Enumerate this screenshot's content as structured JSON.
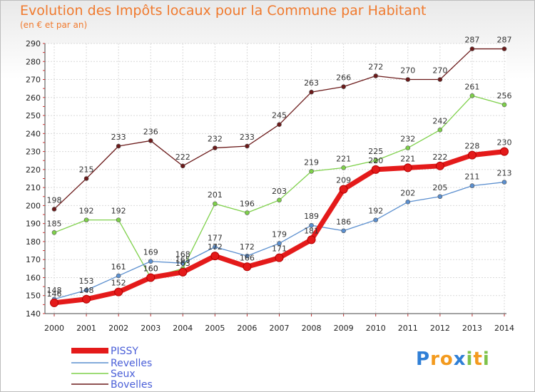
{
  "header": {
    "title": "Evolution des Impôts locaux pour la Commune par Habitant",
    "subtitle": "(en € et par an)"
  },
  "chart_data": {
    "type": "line",
    "title": "Evolution des Impôts locaux pour la Commune par Habitant",
    "subtitle": "(en € et par an)",
    "x": [
      "2000",
      "2001",
      "2002",
      "2003",
      "2004",
      "2005",
      "2006",
      "2007",
      "2008",
      "2009",
      "2010",
      "2011",
      "2012",
      "2013",
      "2014"
    ],
    "ylim": [
      140,
      290
    ],
    "yticks": [
      140,
      150,
      160,
      170,
      180,
      190,
      200,
      210,
      220,
      230,
      240,
      250,
      260,
      270,
      280,
      290
    ],
    "grid": true,
    "legend_position": "bottom-left",
    "series": [
      {
        "name": "Bovelles",
        "color": "#6b1a1a",
        "values": [
          198,
          215,
          233,
          236,
          222,
          232,
          233,
          245,
          263,
          266,
          272,
          270,
          270,
          287,
          287
        ]
      },
      {
        "name": "Seux",
        "color": "#7ed04a",
        "values": [
          185,
          192,
          192,
          160,
          165,
          201,
          196,
          203,
          219,
          221,
          225,
          232,
          242,
          261,
          256
        ]
      },
      {
        "name": "Revelles",
        "color": "#5b8fcf",
        "values": [
          148,
          153,
          161,
          169,
          168,
          177,
          172,
          179,
          189,
          186,
          192,
          202,
          205,
          211,
          213
        ]
      },
      {
        "name": "PISSY",
        "color": "#e41a1a",
        "values": [
          146,
          148,
          152,
          160,
          163,
          172,
          166,
          171,
          181,
          209,
          220,
          221,
          222,
          228,
          230
        ]
      }
    ]
  },
  "legend": {
    "items": [
      {
        "name": "PISSY",
        "color": "#e41a1a"
      },
      {
        "name": "Revelles",
        "color": "#5b8fcf"
      },
      {
        "name": "Seux",
        "color": "#7ed04a"
      },
      {
        "name": "Bovelles",
        "color": "#6b1a1a"
      }
    ]
  },
  "logo": {
    "text": "Proxiti",
    "letters": [
      "P",
      "r",
      "o",
      "x",
      "i",
      "t",
      "i"
    ],
    "colors": [
      "#2f7fd6",
      "#f39a1e",
      "#f39a1e",
      "#2f7fd6",
      "#7ec24a",
      "#f39a1e",
      "#7ec24a"
    ]
  }
}
